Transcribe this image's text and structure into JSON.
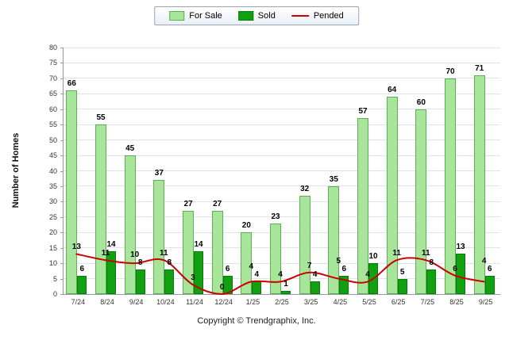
{
  "legend": {
    "items": [
      {
        "label": "For Sale",
        "type": "bar",
        "color": "#a7e59b",
        "border": "#5fae54"
      },
      {
        "label": "Sold",
        "type": "bar",
        "color": "#10a010",
        "border": "#0a7a0a"
      },
      {
        "label": "Pended",
        "type": "line",
        "color": "#cc0000"
      }
    ]
  },
  "y_axis": {
    "title": "Number of Homes",
    "min": 0,
    "max": 80,
    "step": 5
  },
  "footer": "Copyright © Trendgraphix, Inc.",
  "chart_data": {
    "type": "bar",
    "title": "",
    "xlabel": "",
    "ylabel": "Number of Homes",
    "ylim": [
      0,
      80
    ],
    "y_step": 5,
    "grid": true,
    "legend_position": "top-center",
    "categories": [
      "7/24",
      "8/24",
      "9/24",
      "10/24",
      "11/24",
      "12/24",
      "1/25",
      "2/25",
      "3/25",
      "4/25",
      "5/25",
      "6/25",
      "7/25",
      "8/25",
      "9/25"
    ],
    "series": [
      {
        "name": "For Sale",
        "type": "bar",
        "color": "#a7e59b",
        "border": "#5fae54",
        "values": [
          66,
          55,
          45,
          37,
          27,
          27,
          20,
          23,
          32,
          35,
          57,
          64,
          60,
          70,
          71
        ]
      },
      {
        "name": "Sold",
        "type": "bar",
        "color": "#10a010",
        "border": "#0a7a0a",
        "values": [
          6,
          14,
          8,
          8,
          14,
          6,
          4,
          1,
          4,
          6,
          10,
          5,
          8,
          13,
          6
        ]
      },
      {
        "name": "Pended",
        "type": "line",
        "color": "#cc0000",
        "values": [
          13,
          11,
          10,
          11,
          3,
          0,
          4,
          4,
          7,
          5,
          4,
          11,
          11,
          6,
          4
        ]
      }
    ]
  }
}
